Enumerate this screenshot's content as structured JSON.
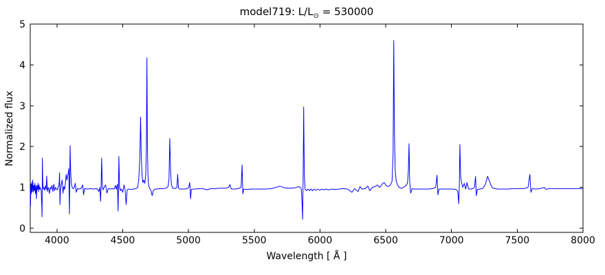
{
  "title": {
    "prefix": "model719: L/L",
    "sub": "⊙",
    "suffix": " = 530000"
  },
  "axes": {
    "x_label": "Wavelength [ Å ]",
    "y_label": "Normalized flux",
    "x_ticks": [
      4000,
      4500,
      5000,
      5500,
      6000,
      6500,
      7000,
      7500,
      8000
    ],
    "y_ticks": [
      0,
      1,
      2,
      3,
      4,
      5
    ]
  },
  "colors": {
    "line": "#0000ff",
    "frame": "#000000",
    "background": "#ffffff",
    "text": "#000000"
  },
  "chart_data": {
    "type": "line",
    "title": "model719: L/L⊙ = 530000",
    "xlabel": "Wavelength [ Å ]",
    "ylabel": "Normalized flux",
    "xlim": [
      3797,
      8000
    ],
    "ylim": [
      0,
      5
    ],
    "x_ticks": [
      4000,
      4500,
      5000,
      5500,
      6000,
      6500,
      7000,
      7500,
      8000
    ],
    "y_ticks": [
      0,
      1,
      2,
      3,
      4,
      5
    ],
    "grid": false,
    "legend": null,
    "series_name": "normalized-spectrum",
    "continuum_level": 0.97,
    "main_emission_peaks": [
      {
        "wavelength": 3889,
        "flux": 1.72
      },
      {
        "wavelength": 4020,
        "flux": 1.36
      },
      {
        "wavelength": 4100,
        "flux": 2.02
      },
      {
        "wavelength": 4340,
        "flux": 1.72
      },
      {
        "wavelength": 4471,
        "flux": 1.76
      },
      {
        "wavelength": 4640,
        "flux": 2.72
      },
      {
        "wavelength": 4686,
        "flux": 4.17
      },
      {
        "wavelength": 4861,
        "flux": 2.2
      },
      {
        "wavelength": 4922,
        "flux": 1.32
      },
      {
        "wavelength": 5411,
        "flux": 1.55
      },
      {
        "wavelength": 5876,
        "flux": 2.97
      },
      {
        "wavelength": 6563,
        "flux": 4.6
      },
      {
        "wavelength": 6678,
        "flux": 2.07
      },
      {
        "wavelength": 7065,
        "flux": 2.05
      },
      {
        "wavelength": 7281,
        "flux": 1.27
      },
      {
        "wavelength": 7600,
        "flux": 1.32
      }
    ],
    "main_absorption_dips": [
      {
        "wavelength": 3887,
        "flux": 0.28
      },
      {
        "wavelength": 4023,
        "flux": 0.58
      },
      {
        "wavelength": 4095,
        "flux": 0.35
      },
      {
        "wavelength": 4332,
        "flux": 0.66
      },
      {
        "wavelength": 4465,
        "flux": 0.42
      },
      {
        "wavelength": 4526,
        "flux": 0.58
      },
      {
        "wavelength": 5868,
        "flux": 0.22
      },
      {
        "wavelength": 7055,
        "flux": 0.6
      }
    ],
    "points": [
      [
        3797,
        0.97
      ],
      [
        3799,
        0.55
      ],
      [
        3802,
        1.08
      ],
      [
        3805,
        0.85
      ],
      [
        3808,
        1.12
      ],
      [
        3812,
        0.9
      ],
      [
        3816,
        1.18
      ],
      [
        3820,
        0.88
      ],
      [
        3824,
        1.05
      ],
      [
        3828,
        0.92
      ],
      [
        3832,
        1.1
      ],
      [
        3836,
        0.85
      ],
      [
        3840,
        1.05
      ],
      [
        3844,
        0.72
      ],
      [
        3848,
        1.04
      ],
      [
        3852,
        0.95
      ],
      [
        3856,
        1.1
      ],
      [
        3860,
        0.9
      ],
      [
        3864,
        1.06
      ],
      [
        3868,
        0.95
      ],
      [
        3872,
        1.0
      ],
      [
        3876,
        0.97
      ],
      [
        3880,
        0.93
      ],
      [
        3884,
        0.6
      ],
      [
        3887,
        0.28
      ],
      [
        3889,
        1.72
      ],
      [
        3892,
        1.12
      ],
      [
        3896,
        0.96
      ],
      [
        3901,
        1.0
      ],
      [
        3907,
        0.93
      ],
      [
        3913,
        1.04
      ],
      [
        3918,
        0.95
      ],
      [
        3922,
        1.28
      ],
      [
        3927,
        0.9
      ],
      [
        3933,
        1.0
      ],
      [
        3938,
        0.95
      ],
      [
        3943,
        0.85
      ],
      [
        3949,
        1.0
      ],
      [
        3955,
        0.96
      ],
      [
        3962,
        1.05
      ],
      [
        3969,
        0.9
      ],
      [
        3976,
        1.08
      ],
      [
        3982,
        0.92
      ],
      [
        3989,
        1.0
      ],
      [
        3996,
        0.96
      ],
      [
        4004,
        0.94
      ],
      [
        4010,
        1.02
      ],
      [
        4016,
        1.06
      ],
      [
        4020,
        1.36
      ],
      [
        4023,
        0.58
      ],
      [
        4027,
        0.95
      ],
      [
        4034,
        1.1
      ],
      [
        4040,
        1.18
      ],
      [
        4046,
        0.86
      ],
      [
        4052,
        1.02
      ],
      [
        4058,
        0.95
      ],
      [
        4064,
        1.1
      ],
      [
        4070,
        1.32
      ],
      [
        4076,
        1.18
      ],
      [
        4083,
        1.3
      ],
      [
        4090,
        1.46
      ],
      [
        4095,
        0.35
      ],
      [
        4100,
        2.02
      ],
      [
        4104,
        1.42
      ],
      [
        4109,
        1.1
      ],
      [
        4116,
        1.0
      ],
      [
        4124,
        0.97
      ],
      [
        4132,
        1.0
      ],
      [
        4139,
        1.1
      ],
      [
        4147,
        0.88
      ],
      [
        4155,
        0.97
      ],
      [
        4168,
        0.96
      ],
      [
        4182,
        0.97
      ],
      [
        4196,
        1.06
      ],
      [
        4202,
        0.82
      ],
      [
        4210,
        0.97
      ],
      [
        4230,
        0.96
      ],
      [
        4255,
        0.97
      ],
      [
        4280,
        0.96
      ],
      [
        4305,
        0.97
      ],
      [
        4318,
        0.9
      ],
      [
        4326,
        1.0
      ],
      [
        4332,
        0.66
      ],
      [
        4336,
        1.1
      ],
      [
        4340,
        1.72
      ],
      [
        4345,
        1.0
      ],
      [
        4352,
        0.94
      ],
      [
        4360,
        1.02
      ],
      [
        4370,
        1.06
      ],
      [
        4380,
        0.86
      ],
      [
        4390,
        0.97
      ],
      [
        4405,
        0.96
      ],
      [
        4420,
        0.97
      ],
      [
        4435,
        0.96
      ],
      [
        4445,
        1.05
      ],
      [
        4452,
        0.95
      ],
      [
        4460,
        1.08
      ],
      [
        4465,
        0.42
      ],
      [
        4468,
        1.0
      ],
      [
        4471,
        1.76
      ],
      [
        4476,
        1.02
      ],
      [
        4482,
        0.92
      ],
      [
        4490,
        0.96
      ],
      [
        4500,
        0.88
      ],
      [
        4510,
        1.06
      ],
      [
        4518,
        0.95
      ],
      [
        4526,
        0.58
      ],
      [
        4534,
        0.94
      ],
      [
        4545,
        0.96
      ],
      [
        4560,
        0.95
      ],
      [
        4580,
        0.96
      ],
      [
        4600,
        0.97
      ],
      [
        4614,
        1.0
      ],
      [
        4622,
        1.2
      ],
      [
        4630,
        1.7
      ],
      [
        4636,
        2.72
      ],
      [
        4641,
        1.8
      ],
      [
        4647,
        1.3
      ],
      [
        4653,
        1.12
      ],
      [
        4660,
        1.18
      ],
      [
        4668,
        1.1
      ],
      [
        4675,
        1.3
      ],
      [
        4680,
        2.0
      ],
      [
        4684,
        4.17
      ],
      [
        4688,
        2.0
      ],
      [
        4692,
        1.3
      ],
      [
        4697,
        1.05
      ],
      [
        4705,
        0.98
      ],
      [
        4715,
        0.92
      ],
      [
        4724,
        0.8
      ],
      [
        4733,
        0.92
      ],
      [
        4745,
        0.96
      ],
      [
        4760,
        0.96
      ],
      [
        4780,
        0.97
      ],
      [
        4805,
        0.97
      ],
      [
        4830,
        0.98
      ],
      [
        4845,
        1.02
      ],
      [
        4852,
        1.2
      ],
      [
        4858,
        2.2
      ],
      [
        4864,
        1.4
      ],
      [
        4870,
        1.08
      ],
      [
        4878,
        0.99
      ],
      [
        4890,
        0.97
      ],
      [
        4902,
        0.98
      ],
      [
        4912,
        1.0
      ],
      [
        4918,
        1.32
      ],
      [
        4924,
        0.98
      ],
      [
        4935,
        0.96
      ],
      [
        4950,
        0.96
      ],
      [
        4970,
        0.96
      ],
      [
        4990,
        0.97
      ],
      [
        5002,
        1.0
      ],
      [
        5010,
        1.12
      ],
      [
        5016,
        0.72
      ],
      [
        5022,
        0.95
      ],
      [
        5035,
        0.96
      ],
      [
        5055,
        0.96
      ],
      [
        5080,
        0.97
      ],
      [
        5110,
        0.97
      ],
      [
        5140,
        0.94
      ],
      [
        5170,
        0.97
      ],
      [
        5200,
        0.97
      ],
      [
        5240,
        0.98
      ],
      [
        5280,
        0.98
      ],
      [
        5305,
        1.0
      ],
      [
        5315,
        1.07
      ],
      [
        5325,
        0.96
      ],
      [
        5350,
        0.96
      ],
      [
        5378,
        0.97
      ],
      [
        5400,
        1.0
      ],
      [
        5408,
        1.55
      ],
      [
        5413,
        0.84
      ],
      [
        5420,
        0.96
      ],
      [
        5445,
        0.95
      ],
      [
        5475,
        0.96
      ],
      [
        5510,
        0.96
      ],
      [
        5550,
        0.96
      ],
      [
        5590,
        0.96
      ],
      [
        5630,
        0.97
      ],
      [
        5665,
        1.0
      ],
      [
        5695,
        1.03
      ],
      [
        5730,
        0.99
      ],
      [
        5770,
        0.98
      ],
      [
        5810,
        0.99
      ],
      [
        5842,
        1.02
      ],
      [
        5858,
        0.97
      ],
      [
        5864,
        0.6
      ],
      [
        5868,
        0.22
      ],
      [
        5872,
        1.3
      ],
      [
        5876,
        2.97
      ],
      [
        5881,
        1.3
      ],
      [
        5887,
        0.95
      ],
      [
        5897,
        0.92
      ],
      [
        5908,
        0.96
      ],
      [
        5919,
        0.92
      ],
      [
        5931,
        0.96
      ],
      [
        5943,
        0.92
      ],
      [
        5956,
        0.96
      ],
      [
        5970,
        0.93
      ],
      [
        5984,
        0.96
      ],
      [
        5998,
        0.93
      ],
      [
        6013,
        0.96
      ],
      [
        6028,
        0.94
      ],
      [
        6045,
        0.96
      ],
      [
        6065,
        0.94
      ],
      [
        6090,
        0.96
      ],
      [
        6115,
        0.95
      ],
      [
        6145,
        0.96
      ],
      [
        6175,
        0.97
      ],
      [
        6210,
        0.96
      ],
      [
        6243,
        0.88
      ],
      [
        6262,
        0.97
      ],
      [
        6290,
        0.9
      ],
      [
        6304,
        1.02
      ],
      [
        6320,
        0.96
      ],
      [
        6345,
        0.97
      ],
      [
        6363,
        1.03
      ],
      [
        6380,
        0.92
      ],
      [
        6398,
        1.0
      ],
      [
        6418,
        1.02
      ],
      [
        6438,
        1.06
      ],
      [
        6455,
        1.0
      ],
      [
        6472,
        1.08
      ],
      [
        6488,
        1.12
      ],
      [
        6505,
        1.04
      ],
      [
        6520,
        1.02
      ],
      [
        6535,
        1.06
      ],
      [
        6548,
        1.15
      ],
      [
        6556,
        1.8
      ],
      [
        6561,
        4.6
      ],
      [
        6566,
        2.4
      ],
      [
        6572,
        1.4
      ],
      [
        6580,
        1.15
      ],
      [
        6590,
        1.06
      ],
      [
        6602,
        1.0
      ],
      [
        6618,
        0.98
      ],
      [
        6635,
        1.0
      ],
      [
        6652,
        1.04
      ],
      [
        6665,
        1.1
      ],
      [
        6672,
        1.4
      ],
      [
        6677,
        2.07
      ],
      [
        6682,
        1.15
      ],
      [
        6690,
        0.86
      ],
      [
        6700,
        0.97
      ],
      [
        6718,
        0.96
      ],
      [
        6740,
        0.96
      ],
      [
        6765,
        0.96
      ],
      [
        6795,
        0.96
      ],
      [
        6825,
        0.96
      ],
      [
        6855,
        0.97
      ],
      [
        6880,
        1.0
      ],
      [
        6890,
        1.3
      ],
      [
        6897,
        0.82
      ],
      [
        6905,
        0.96
      ],
      [
        6925,
        0.96
      ],
      [
        6950,
        0.96
      ],
      [
        6980,
        0.96
      ],
      [
        7010,
        0.96
      ],
      [
        7035,
        0.95
      ],
      [
        7048,
        0.9
      ],
      [
        7055,
        0.6
      ],
      [
        7060,
        1.1
      ],
      [
        7064,
        2.05
      ],
      [
        7070,
        1.25
      ],
      [
        7078,
        1.1
      ],
      [
        7086,
        1.0
      ],
      [
        7097,
        1.1
      ],
      [
        7108,
        0.96
      ],
      [
        7118,
        1.12
      ],
      [
        7130,
        0.96
      ],
      [
        7145,
        0.96
      ],
      [
        7162,
        0.97
      ],
      [
        7175,
        1.0
      ],
      [
        7183,
        1.27
      ],
      [
        7189,
        0.8
      ],
      [
        7197,
        0.95
      ],
      [
        7215,
        0.96
      ],
      [
        7240,
        0.98
      ],
      [
        7258,
        1.08
      ],
      [
        7275,
        1.27
      ],
      [
        7292,
        1.12
      ],
      [
        7308,
        1.0
      ],
      [
        7328,
        0.97
      ],
      [
        7355,
        0.96
      ],
      [
        7390,
        0.96
      ],
      [
        7430,
        0.96
      ],
      [
        7470,
        0.97
      ],
      [
        7510,
        0.97
      ],
      [
        7550,
        0.97
      ],
      [
        7582,
        1.0
      ],
      [
        7596,
        1.32
      ],
      [
        7604,
        0.88
      ],
      [
        7614,
        0.97
      ],
      [
        7640,
        0.96
      ],
      [
        7672,
        0.97
      ],
      [
        7705,
        1.0
      ],
      [
        7718,
        0.95
      ],
      [
        7740,
        0.97
      ],
      [
        7780,
        0.97
      ],
      [
        7820,
        0.97
      ],
      [
        7860,
        0.97
      ],
      [
        7900,
        0.97
      ],
      [
        7950,
        0.97
      ],
      [
        8000,
        0.97
      ]
    ]
  }
}
